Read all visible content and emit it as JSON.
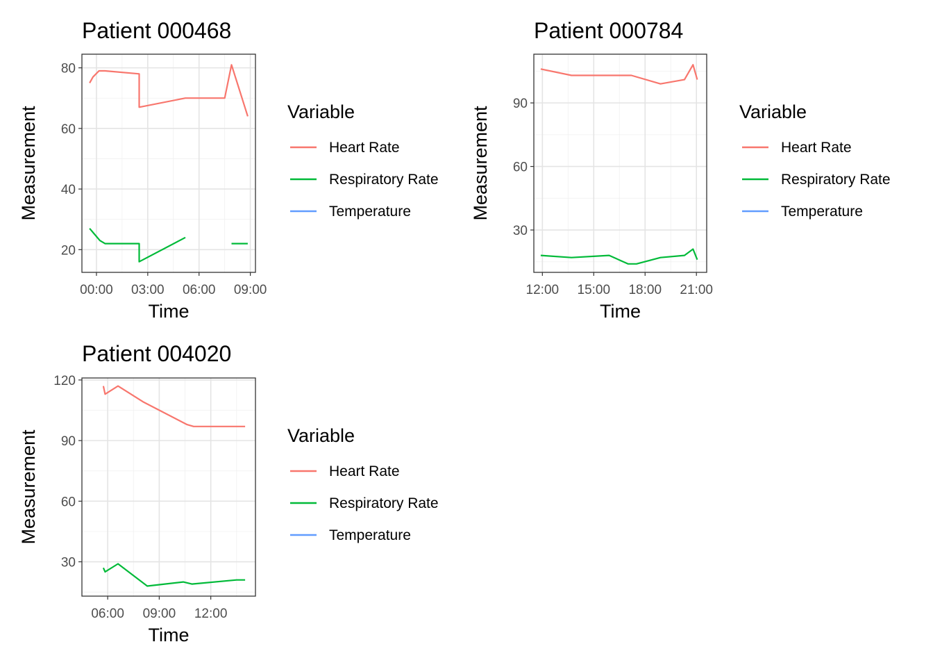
{
  "chart_data": [
    {
      "type": "line",
      "title": "Patient 000468",
      "xlabel": "Time",
      "ylabel": "Measurement",
      "x_ticks": [
        "00:00",
        "03:00",
        "06:00",
        "09:00"
      ],
      "x_tick_hours": [
        0,
        3,
        6,
        9
      ],
      "xlim_hours": [
        -0.85,
        9.3
      ],
      "y_ticks": [
        20,
        40,
        60,
        80
      ],
      "ylim": [
        12.5,
        84.5
      ],
      "legend": {
        "title": "Variable",
        "position": "right",
        "entries": [
          "Heart Rate",
          "Respiratory Rate",
          "Temperature"
        ]
      },
      "grid": true,
      "series": [
        {
          "name": "Heart Rate",
          "color": "#F8766D",
          "segments": [
            [
              [
                -0.4,
                75
              ],
              [
                -0.2,
                77
              ],
              [
                0.15,
                79
              ],
              [
                0.5,
                79
              ],
              [
                2.5,
                78
              ],
              [
                2.5,
                67
              ],
              [
                5.2,
                70
              ],
              [
                7.5,
                70
              ],
              [
                7.9,
                81
              ],
              [
                8.85,
                64
              ]
            ]
          ]
        },
        {
          "name": "Respiratory Rate",
          "color": "#00BA38",
          "segments": [
            [
              [
                -0.4,
                27
              ],
              [
                -0.1,
                25
              ],
              [
                0.2,
                23
              ],
              [
                0.5,
                22
              ],
              [
                2.5,
                22
              ],
              [
                2.5,
                16
              ],
              [
                5.2,
                24
              ]
            ],
            [
              [
                7.9,
                22
              ],
              [
                8.85,
                22
              ]
            ]
          ]
        },
        {
          "name": "Temperature",
          "color": "#619CFF",
          "segments": []
        }
      ]
    },
    {
      "type": "line",
      "title": "Patient 000784",
      "xlabel": "Time",
      "ylabel": "Measurement",
      "x_ticks": [
        "12:00",
        "15:00",
        "18:00",
        "21:00"
      ],
      "x_tick_hours": [
        12,
        15,
        18,
        21
      ],
      "xlim_hours": [
        11.5,
        21.6
      ],
      "y_ticks": [
        30,
        60,
        90
      ],
      "ylim": [
        10,
        113
      ],
      "legend": {
        "title": "Variable",
        "position": "right",
        "entries": [
          "Heart Rate",
          "Respiratory Rate",
          "Temperature"
        ]
      },
      "grid": true,
      "series": [
        {
          "name": "Heart Rate",
          "color": "#F8766D",
          "segments": [
            [
              [
                11.9,
                106
              ],
              [
                13.7,
                103
              ],
              [
                17.2,
                103
              ],
              [
                18.9,
                99
              ],
              [
                20.3,
                101
              ],
              [
                20.8,
                108
              ],
              [
                21.05,
                101
              ]
            ]
          ]
        },
        {
          "name": "Respiratory Rate",
          "color": "#00BA38",
          "segments": [
            [
              [
                11.9,
                18
              ],
              [
                13.7,
                17
              ],
              [
                15.9,
                18
              ],
              [
                17.0,
                14
              ],
              [
                17.5,
                14
              ],
              [
                18.9,
                17
              ],
              [
                20.3,
                18
              ],
              [
                20.8,
                21
              ],
              [
                21.05,
                16
              ]
            ]
          ]
        },
        {
          "name": "Temperature",
          "color": "#619CFF",
          "segments": []
        }
      ]
    },
    {
      "type": "line",
      "title": "Patient 004020",
      "xlabel": "Time",
      "ylabel": "Measurement",
      "x_ticks": [
        "06:00",
        "09:00",
        "12:00"
      ],
      "x_tick_hours": [
        6,
        9,
        12
      ],
      "xlim_hours": [
        4.5,
        14.6
      ],
      "y_ticks": [
        30,
        60,
        90,
        120
      ],
      "ylim": [
        13,
        121
      ],
      "legend": {
        "title": "Variable",
        "position": "right",
        "entries": [
          "Heart Rate",
          "Respiratory Rate",
          "Temperature"
        ]
      },
      "grid": true,
      "series": [
        {
          "name": "Heart Rate",
          "color": "#F8766D",
          "segments": [
            [
              [
                5.75,
                117
              ],
              [
                5.85,
                113
              ],
              [
                6.6,
                117
              ],
              [
                8.1,
                109
              ],
              [
                10.6,
                98
              ],
              [
                11.0,
                97
              ],
              [
                14.0,
                97
              ]
            ]
          ]
        },
        {
          "name": "Respiratory Rate",
          "color": "#00BA38",
          "segments": [
            [
              [
                5.75,
                27
              ],
              [
                5.85,
                25
              ],
              [
                6.6,
                29
              ],
              [
                8.3,
                18
              ],
              [
                10.4,
                20
              ],
              [
                10.9,
                19
              ],
              [
                13.5,
                21
              ],
              [
                14.0,
                21
              ]
            ]
          ]
        },
        {
          "name": "Temperature",
          "color": "#619CFF",
          "segments": []
        }
      ]
    }
  ]
}
